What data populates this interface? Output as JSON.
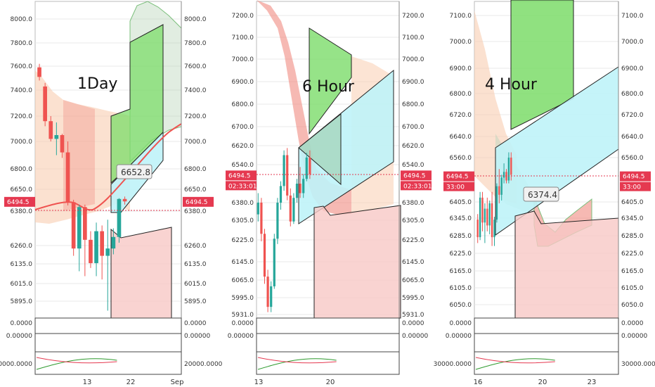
{
  "chart_data": [
    {
      "type": "candlestick",
      "title": "1Day",
      "price_ticks": [
        8000.0,
        7800.0,
        7600.0,
        7400.0,
        7200.0,
        7000.0,
        6800.0,
        6650.0,
        6380.0,
        6260.0,
        6135.0,
        6015.0,
        5895.0
      ],
      "price_tick_labels": [
        "8000.0",
        "7800.0",
        "7600.0",
        "7400.0",
        "7200.0",
        "7000.0",
        "6800.0",
        "6650.0",
        "6380.0",
        "6260.0",
        "6135.0",
        "6015.0",
        "5895.0"
      ],
      "ylim": [
        5830,
        8060
      ],
      "x_tick_labels": [
        "13",
        "22",
        "Sep"
      ],
      "current_price": "6494.5",
      "current_price_value": 6494.5,
      "callout": "6652.8",
      "callout_value": 6652.8,
      "indicator_labels": [
        "0.0000",
        "0.00000",
        "20000.0000"
      ],
      "indicator_label_values": [
        0.0,
        0.0,
        20000.0
      ],
      "candles": [
        {
          "o": 7590,
          "h": 7620,
          "l": 7480,
          "c": 7510
        },
        {
          "o": 7430,
          "h": 7460,
          "l": 7120,
          "c": 7160
        },
        {
          "o": 7160,
          "h": 7200,
          "l": 7000,
          "c": 7020
        },
        {
          "o": 7020,
          "h": 7150,
          "l": 6900,
          "c": 7050
        },
        {
          "o": 7050,
          "h": 7060,
          "l": 6880,
          "c": 6920
        },
        {
          "o": 6920,
          "h": 7000,
          "l": 6450,
          "c": 6490
        },
        {
          "o": 6490,
          "h": 6520,
          "l": 6190,
          "c": 6240
        },
        {
          "o": 6240,
          "h": 6460,
          "l": 6090,
          "c": 6430
        },
        {
          "o": 6430,
          "h": 6460,
          "l": 6060,
          "c": 6280
        },
        {
          "o": 6280,
          "h": 6310,
          "l": 6110,
          "c": 6140
        },
        {
          "o": 6140,
          "h": 6340,
          "l": 6060,
          "c": 6310
        },
        {
          "o": 6310,
          "h": 6330,
          "l": 6040,
          "c": 6190
        },
        {
          "o": 6190,
          "h": 6350,
          "l": 5830,
          "c": 6240
        },
        {
          "o": 6240,
          "h": 6320,
          "l": 6200,
          "c": 6290
        },
        {
          "o": 6290,
          "h": 6540,
          "l": 6270,
          "c": 6530
        },
        {
          "o": 6530,
          "h": 6560,
          "l": 6460,
          "c": 6500
        }
      ]
    },
    {
      "type": "candlestick",
      "title": "6 Hour",
      "price_ticks": [
        7200.0,
        7100.0,
        7000.0,
        6900.0,
        6800.0,
        6700.0,
        6620.0,
        6540.0,
        6380.0,
        6305.0,
        6225.0,
        6145.0,
        6065.0,
        5995.0,
        5931.0
      ],
      "price_tick_labels": [
        "7200.0",
        "7100.0",
        "7000.0",
        "6900.0",
        "6800.0",
        "6700.0",
        "6620.0",
        "6540.0",
        "6380.0",
        "6305.0",
        "6225.0",
        "6145.0",
        "6065.0",
        "5995.0",
        "5931.0"
      ],
      "ylim": [
        5925,
        7260
      ],
      "x_tick_labels": [
        "13",
        "20"
      ],
      "current_price": "6494.5",
      "current_price_value": 6494.5,
      "countdown": "02:33:01",
      "indicator_labels": [
        "0.0000",
        "0.00000"
      ],
      "indicator_label_values": [
        0.0,
        0.0
      ],
      "candles": [
        {
          "o": 6330,
          "h": 6420,
          "l": 6300,
          "c": 6380
        },
        {
          "o": 6380,
          "h": 6400,
          "l": 6220,
          "c": 6250
        },
        {
          "o": 6250,
          "h": 6270,
          "l": 6050,
          "c": 6080
        },
        {
          "o": 6080,
          "h": 6110,
          "l": 5940,
          "c": 5960
        },
        {
          "o": 5960,
          "h": 6060,
          "l": 5940,
          "c": 6040
        },
        {
          "o": 6040,
          "h": 6250,
          "l": 6030,
          "c": 6230
        },
        {
          "o": 6230,
          "h": 6400,
          "l": 6210,
          "c": 6380
        },
        {
          "o": 6380,
          "h": 6470,
          "l": 6350,
          "c": 6450
        },
        {
          "o": 6450,
          "h": 6600,
          "l": 6430,
          "c": 6580
        },
        {
          "o": 6580,
          "h": 6610,
          "l": 6390,
          "c": 6410
        },
        {
          "o": 6410,
          "h": 6440,
          "l": 6280,
          "c": 6300
        },
        {
          "o": 6300,
          "h": 6420,
          "l": 6290,
          "c": 6400
        },
        {
          "o": 6400,
          "h": 6480,
          "l": 6380,
          "c": 6460
        },
        {
          "o": 6460,
          "h": 6530,
          "l": 6400,
          "c": 6420
        },
        {
          "o": 6420,
          "h": 6500,
          "l": 6400,
          "c": 6480
        },
        {
          "o": 6480,
          "h": 6590,
          "l": 6470,
          "c": 6570
        },
        {
          "o": 6570,
          "h": 6600,
          "l": 6480,
          "c": 6500
        }
      ]
    },
    {
      "type": "candlestick",
      "title": "4 Hour",
      "price_ticks": [
        7100.0,
        7000.0,
        6900.0,
        6800.0,
        6720.0,
        6640.0,
        6560.0,
        6405.0,
        6345.0,
        6285.0,
        6225.0,
        6165.0,
        6105.0,
        6050.0
      ],
      "price_tick_labels": [
        "7100.0",
        "7000.0",
        "6900.0",
        "6800.0",
        "6720.0",
        "6640.0",
        "6560.0",
        "6405.0",
        "6345.0",
        "6285.0",
        "6225.0",
        "6165.0",
        "6105.0",
        "6050.0"
      ],
      "ylim": [
        6020,
        7130
      ],
      "x_tick_labels": [
        "16",
        "20",
        "23"
      ],
      "current_price": "6494.5",
      "current_price_value": 6494.5,
      "countdown": "33:00",
      "callout": "6374.4",
      "callout_value": 6374.4,
      "indicator_labels": [
        "0.0000",
        "0.00000",
        "30000.0000"
      ],
      "indicator_label_values": [
        0.0,
        0.0,
        30000.0
      ],
      "candles": [
        {
          "o": 6340,
          "h": 6360,
          "l": 6260,
          "c": 6280
        },
        {
          "o": 6280,
          "h": 6440,
          "l": 6270,
          "c": 6420
        },
        {
          "o": 6420,
          "h": 6440,
          "l": 6300,
          "c": 6330
        },
        {
          "o": 6330,
          "h": 6400,
          "l": 6260,
          "c": 6380
        },
        {
          "o": 6380,
          "h": 6420,
          "l": 6300,
          "c": 6320
        },
        {
          "o": 6320,
          "h": 6410,
          "l": 6290,
          "c": 6400
        },
        {
          "o": 6400,
          "h": 6440,
          "l": 6250,
          "c": 6280
        },
        {
          "o": 6280,
          "h": 6350,
          "l": 6250,
          "c": 6340
        },
        {
          "o": 6340,
          "h": 6470,
          "l": 6330,
          "c": 6460
        },
        {
          "o": 6460,
          "h": 6520,
          "l": 6400,
          "c": 6430
        },
        {
          "o": 6430,
          "h": 6500,
          "l": 6410,
          "c": 6490
        },
        {
          "o": 6490,
          "h": 6540,
          "l": 6470,
          "c": 6510
        },
        {
          "o": 6510,
          "h": 6520,
          "l": 6470,
          "c": 6480
        },
        {
          "o": 6480,
          "h": 6580,
          "l": 6470,
          "c": 6560
        },
        {
          "o": 6560,
          "h": 6580,
          "l": 6480,
          "c": 6500
        }
      ]
    }
  ],
  "colors": {
    "up": "#26a69a",
    "down": "#ef5350",
    "price_flag": "#e53950",
    "price_line": "#e53950",
    "grid": "#e8e8e8",
    "ma_line": "#ef5350",
    "cloud_green": "#7ed957",
    "cloud_red": "#f08a80",
    "band_peach": "#f9cdb0",
    "band_gray": "#bdd6bd",
    "projection_green": "#7cdc6a",
    "projection_cyan": "#bff3f8",
    "projection_red": "#f8c8c6",
    "indicator_green": "#2e9a2e",
    "indicator_red": "#e53950"
  }
}
